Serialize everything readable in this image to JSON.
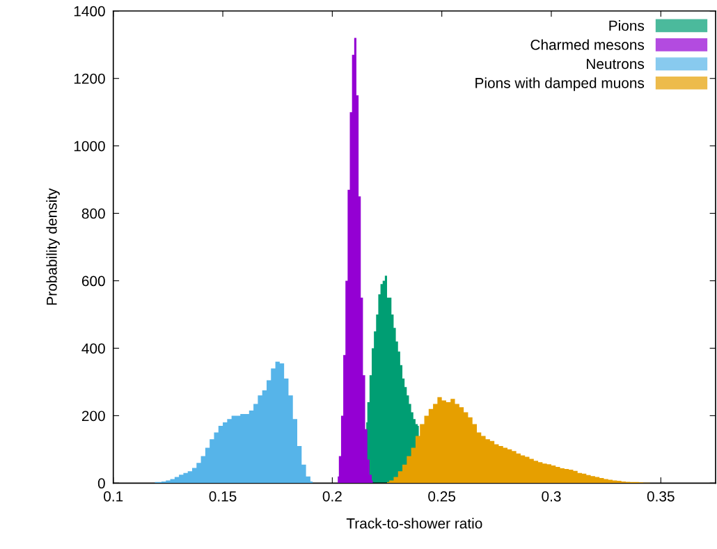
{
  "chart_data": {
    "type": "area",
    "xlabel": "Track-to-shower ratio",
    "ylabel": "Probability density",
    "xlim": [
      0.1,
      0.375
    ],
    "xticks": [
      0.1,
      0.15,
      0.2,
      0.25,
      0.3,
      0.35
    ],
    "ylim": [
      0,
      1400
    ],
    "yticks": [
      0,
      200,
      400,
      600,
      800,
      1000,
      1200,
      1400
    ],
    "grid": false,
    "legend": "top right",
    "series": [
      {
        "name": "Pions",
        "color": "#009e73",
        "x": [
          0.2155,
          0.2165,
          0.2175,
          0.2185,
          0.2195,
          0.2205,
          0.2215,
          0.2225,
          0.2235,
          0.2245,
          0.2255,
          0.2265,
          0.2275,
          0.2285,
          0.2295,
          0.2305,
          0.2315,
          0.2325,
          0.2335,
          0.2345,
          0.2355,
          0.2365,
          0.2375,
          0.2385,
          0.2395
        ],
        "values": [
          180,
          240,
          320,
          400,
          450,
          500,
          560,
          590,
          600,
          615,
          550,
          550,
          500,
          460,
          420,
          390,
          350,
          310,
          285,
          260,
          235,
          210,
          190,
          175,
          170
        ]
      },
      {
        "name": "Charmed mesons",
        "color": "#9400d3",
        "x": [
          0.2025,
          0.2035,
          0.2045,
          0.2055,
          0.2065,
          0.2075,
          0.2085,
          0.2095,
          0.2105,
          0.2115,
          0.2125,
          0.2135,
          0.2145,
          0.2155,
          0.2165,
          0.2175,
          0.2185
        ],
        "values": [
          20,
          80,
          200,
          380,
          600,
          870,
          1100,
          1270,
          1320,
          1150,
          850,
          550,
          320,
          160,
          70,
          25,
          8
        ]
      },
      {
        "name": "Neutrons",
        "color": "#56b4e9",
        "x": [
          0.119,
          0.121,
          0.123,
          0.125,
          0.127,
          0.129,
          0.131,
          0.133,
          0.135,
          0.137,
          0.139,
          0.141,
          0.143,
          0.145,
          0.147,
          0.149,
          0.151,
          0.153,
          0.155,
          0.157,
          0.159,
          0.161,
          0.163,
          0.165,
          0.167,
          0.169,
          0.171,
          0.173,
          0.175,
          0.177,
          0.179,
          0.181,
          0.183,
          0.185,
          0.187,
          0.189,
          0.191
        ],
        "values": [
          3,
          3,
          5,
          8,
          12,
          18,
          25,
          30,
          35,
          45,
          60,
          80,
          105,
          130,
          150,
          170,
          180,
          190,
          200,
          200,
          205,
          205,
          215,
          235,
          260,
          275,
          305,
          340,
          360,
          355,
          310,
          260,
          190,
          110,
          55,
          20,
          5
        ]
      },
      {
        "name": "Pions with damped muons",
        "color": "#e69f00",
        "x": [
          0.225,
          0.227,
          0.229,
          0.231,
          0.233,
          0.235,
          0.237,
          0.239,
          0.241,
          0.243,
          0.245,
          0.247,
          0.249,
          0.251,
          0.253,
          0.255,
          0.257,
          0.259,
          0.261,
          0.263,
          0.265,
          0.267,
          0.269,
          0.271,
          0.273,
          0.275,
          0.277,
          0.279,
          0.281,
          0.283,
          0.285,
          0.287,
          0.289,
          0.291,
          0.293,
          0.295,
          0.297,
          0.299,
          0.301,
          0.303,
          0.305,
          0.307,
          0.309,
          0.311,
          0.313,
          0.315,
          0.317,
          0.319,
          0.321,
          0.323,
          0.325,
          0.327,
          0.329,
          0.331,
          0.333,
          0.335,
          0.337,
          0.339,
          0.341,
          0.343,
          0.345
        ],
        "values": [
          3,
          8,
          18,
          35,
          55,
          80,
          105,
          140,
          175,
          200,
          220,
          235,
          255,
          245,
          240,
          250,
          235,
          225,
          210,
          195,
          175,
          150,
          140,
          130,
          125,
          115,
          110,
          105,
          100,
          95,
          88,
          82,
          78,
          72,
          66,
          62,
          58,
          56,
          52,
          48,
          44,
          42,
          40,
          36,
          30,
          28,
          24,
          21,
          18,
          15,
          12,
          10,
          8,
          7,
          5,
          4,
          3,
          3,
          2,
          1,
          1
        ]
      }
    ]
  }
}
